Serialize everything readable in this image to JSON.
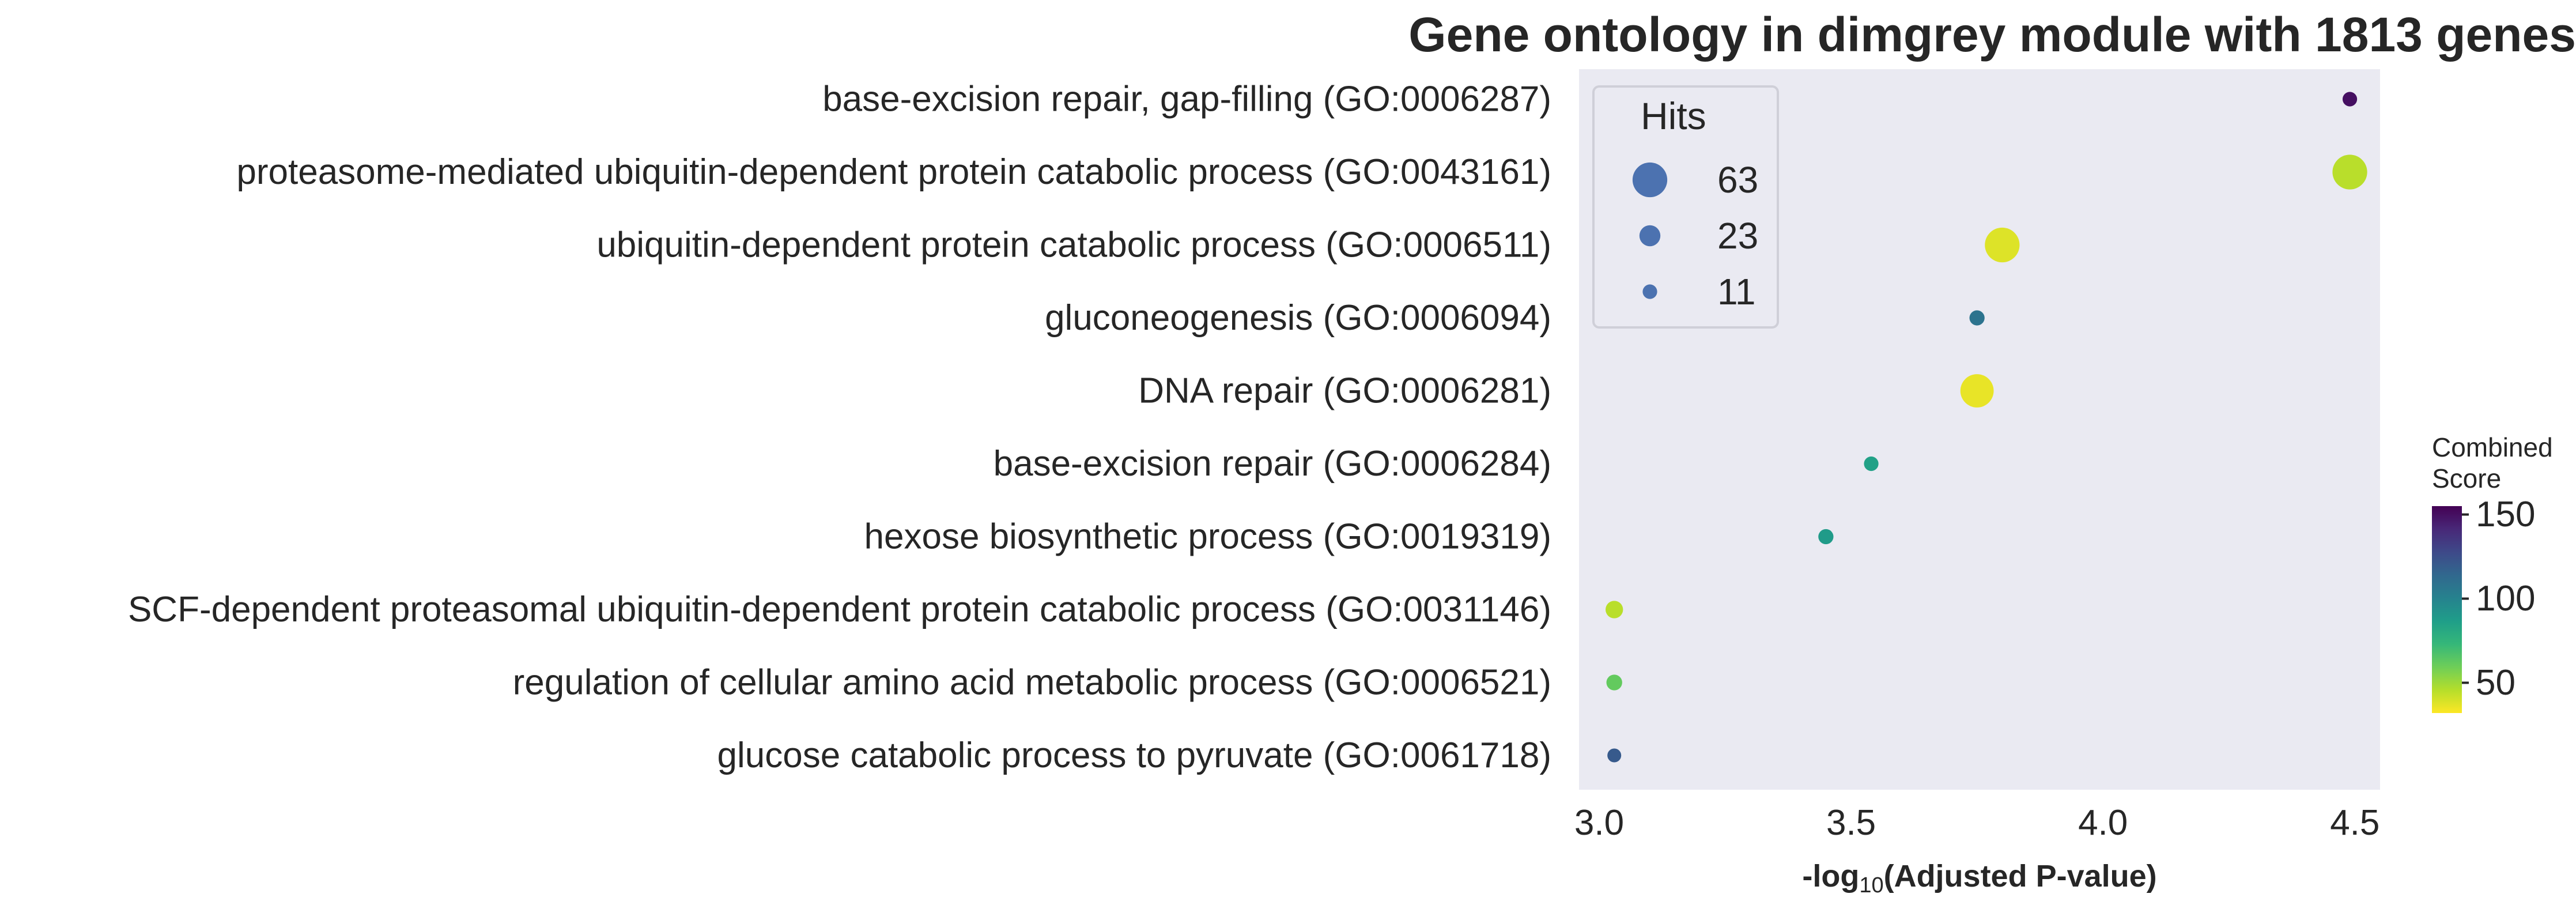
{
  "chart_data": {
    "type": "scatter",
    "title": "Gene ontology in dimgrey module with 1813 genes",
    "xlabel": "-log10(Adjusted P-value)",
    "xlabel_parts": {
      "prefix": "-log",
      "subscript": "10",
      "suffix": "(Adjusted P-value)"
    },
    "ylabel": "",
    "xlim": [
      2.96,
      4.55
    ],
    "xticks": [
      3.0,
      3.5,
      4.0,
      4.5
    ],
    "xtick_labels": [
      "3.0",
      "3.5",
      "4.0",
      "4.5"
    ],
    "grid": false,
    "terms": [
      {
        "label": "base-excision repair, gap-filling (GO:0006287)",
        "x": 4.49,
        "hits": 11,
        "score": 150
      },
      {
        "label": "proteasome-mediated ubiquitin-dependent protein catabolic process (GO:0043161)",
        "x": 4.49,
        "hits": 63,
        "score": 45
      },
      {
        "label": "ubiquitin-dependent protein catabolic process (GO:0006511)",
        "x": 3.8,
        "hits": 63,
        "score": 38
      },
      {
        "label": "gluconeogenesis (GO:0006094)",
        "x": 3.75,
        "hits": 12,
        "score": 108
      },
      {
        "label": "DNA repair (GO:0006281)",
        "x": 3.75,
        "hits": 58,
        "score": 36
      },
      {
        "label": "base-excision repair (GO:0006284)",
        "x": 3.54,
        "hits": 11,
        "score": 85
      },
      {
        "label": "hexose biosynthetic process (GO:0019319)",
        "x": 3.45,
        "hits": 12,
        "score": 88
      },
      {
        "label": "SCF-dependent proteasomal ubiquitin-dependent protein catabolic process (GO:0031146)",
        "x": 3.03,
        "hits": 16,
        "score": 45
      },
      {
        "label": "regulation of cellular amino acid metabolic process (GO:0006521)",
        "x": 3.03,
        "hits": 13,
        "score": 62
      },
      {
        "label": "glucose catabolic process to pyruvate (GO:0061718)",
        "x": 3.03,
        "hits": 10,
        "score": 120
      }
    ],
    "size_legend": {
      "title": "Hits",
      "placement": "top-left",
      "entries": [
        {
          "label": "63",
          "value": 63
        },
        {
          "label": "23",
          "value": 23
        },
        {
          "label": "11",
          "value": 11
        }
      ]
    },
    "colorbar": {
      "title_lines": [
        "Combined",
        "Score"
      ],
      "range": [
        32,
        155
      ],
      "ticks": [
        50,
        100,
        150
      ],
      "tick_labels": [
        "50",
        "100",
        "150"
      ],
      "colormap": "viridis_r"
    },
    "colors": {
      "plot_background": "#eaeaf2",
      "legend_marker": "#4c72b0",
      "viridis": [
        "#440154",
        "#482878",
        "#3e4989",
        "#31688e",
        "#26828e",
        "#1f9e89",
        "#35b779",
        "#6ece58",
        "#b5de2b",
        "#fde725"
      ]
    }
  }
}
